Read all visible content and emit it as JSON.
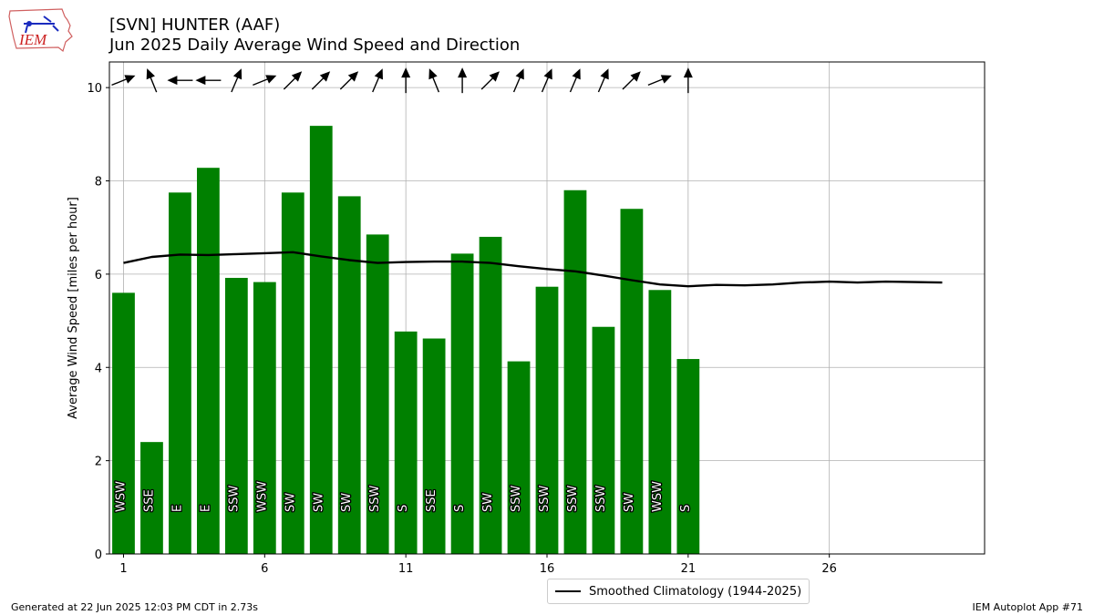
{
  "logo": {
    "label": "IEM",
    "icon": "iowa-state-outline-icon"
  },
  "title": {
    "line1": "[SVN] HUNTER (AAF)",
    "line2": "Jun 2025 Daily Average Wind Speed and Direction"
  },
  "footer": {
    "left": "Generated at 22 Jun 2025 12:03 PM CDT in 2.73s",
    "right": "IEM Autoplot App #71"
  },
  "colors": {
    "bars": "#008000",
    "climatology": "#000000",
    "grid": "#b0b0b0"
  },
  "chart_data": {
    "type": "bar",
    "ylabel": "Average Wind Speed [miles per hour]",
    "xlabel": "",
    "xlim": [
      0.5,
      31.5
    ],
    "ylim": [
      0,
      10.55
    ],
    "xticks": [
      1,
      6,
      11,
      16,
      21,
      26
    ],
    "yticks": [
      0,
      2,
      4,
      6,
      8,
      10
    ],
    "grid": true,
    "legend_position": "bottom-center",
    "days": [
      1,
      2,
      3,
      4,
      5,
      6,
      7,
      8,
      9,
      10,
      11,
      12,
      13,
      14,
      15,
      16,
      17,
      18,
      19,
      20,
      21
    ],
    "speed": [
      5.6,
      2.4,
      7.75,
      8.28,
      5.92,
      5.83,
      7.75,
      9.18,
      7.67,
      6.85,
      4.77,
      4.62,
      6.44,
      6.8,
      4.13,
      5.73,
      7.8,
      4.87,
      7.4,
      5.66,
      4.18
    ],
    "direction_labels": [
      "WSW",
      "SSE",
      "E",
      "E",
      "SSW",
      "WSW",
      "SW",
      "SW",
      "SW",
      "SSW",
      "S",
      "SSE",
      "S",
      "SW",
      "SSW",
      "SSW",
      "SSW",
      "SSW",
      "SW",
      "WSW",
      "S"
    ],
    "direction_deg": [
      248,
      158,
      90,
      90,
      203,
      248,
      225,
      225,
      225,
      203,
      180,
      158,
      180,
      225,
      203,
      203,
      203,
      203,
      225,
      248,
      180
    ],
    "arrow_y": 10,
    "series": [
      {
        "name": "Smoothed Climatology (1944-2025)",
        "x": [
          1,
          2,
          3,
          4,
          5,
          6,
          7,
          8,
          9,
          10,
          11,
          12,
          13,
          14,
          15,
          16,
          17,
          18,
          19,
          20,
          21,
          22,
          23,
          24,
          25,
          26,
          27,
          28,
          29,
          30
        ],
        "values": [
          6.24,
          6.37,
          6.42,
          6.41,
          6.43,
          6.45,
          6.47,
          6.38,
          6.3,
          6.24,
          6.26,
          6.27,
          6.27,
          6.24,
          6.17,
          6.11,
          6.06,
          5.97,
          5.87,
          5.78,
          5.74,
          5.77,
          5.76,
          5.78,
          5.82,
          5.84,
          5.82,
          5.84,
          5.83,
          5.82
        ]
      }
    ]
  }
}
